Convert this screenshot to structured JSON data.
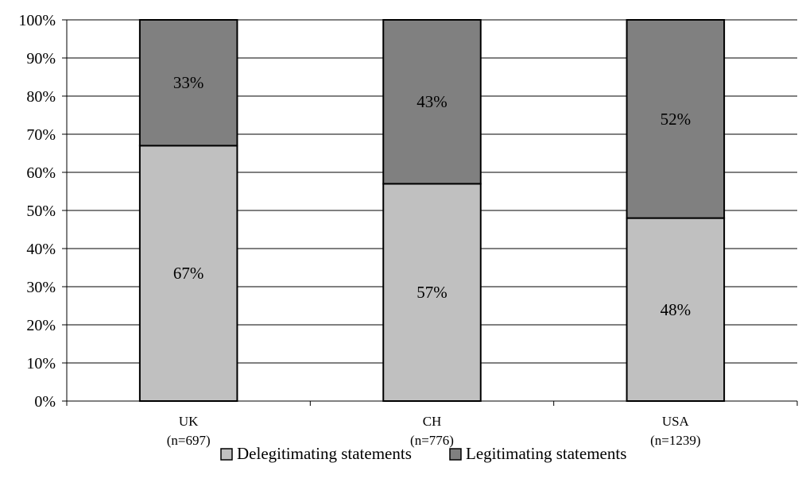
{
  "chart_data": {
    "type": "bar",
    "stacked": true,
    "percent_stacked": true,
    "categories": [
      "UK",
      "CH",
      "USA"
    ],
    "category_sublabels": [
      "(n=697)",
      "(n=776)",
      "(n=1239)"
    ],
    "series": [
      {
        "name": "Delegitimating statements",
        "values": [
          67,
          57,
          48
        ],
        "labels": [
          "67%",
          "57%",
          "48%"
        ],
        "color": "#c0c0c0"
      },
      {
        "name": "Legitimating statements",
        "values": [
          33,
          43,
          52
        ],
        "labels": [
          "33%",
          "43%",
          "52%"
        ],
        "color": "#808080"
      }
    ],
    "ylim": [
      0,
      100
    ],
    "yticks": [
      "0%",
      "10%",
      "20%",
      "30%",
      "40%",
      "50%",
      "60%",
      "70%",
      "80%",
      "90%",
      "100%"
    ],
    "grid": true,
    "legend": "bottom"
  }
}
